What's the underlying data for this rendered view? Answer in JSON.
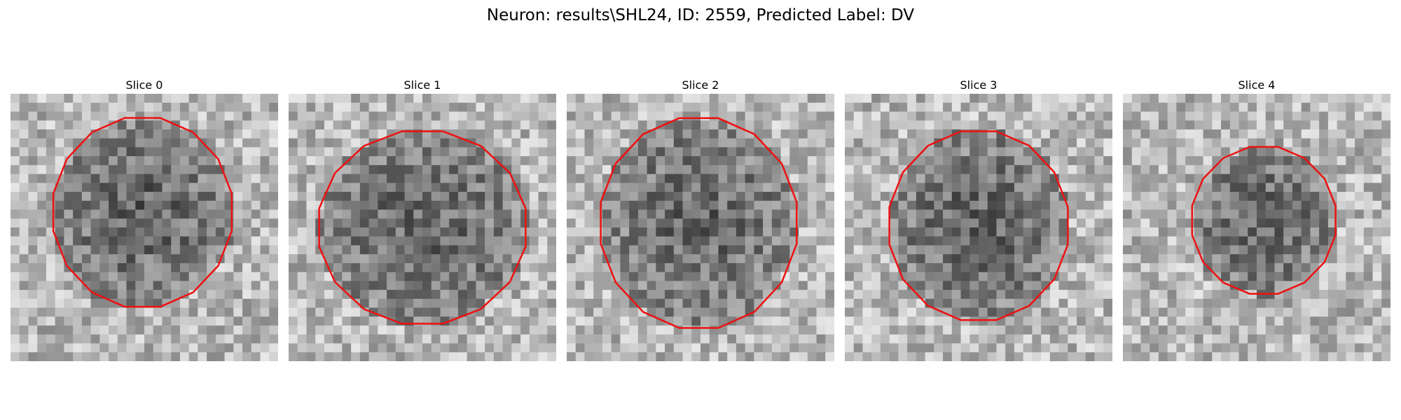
{
  "figure": {
    "title": "Neuron: results\\SHL24, ID: 2559, Predicted Label: DV"
  },
  "panels": [
    {
      "title": "Slice 0"
    },
    {
      "title": "Slice 1"
    },
    {
      "title": "Slice 2"
    },
    {
      "title": "Slice 3"
    },
    {
      "title": "Slice 4"
    }
  ],
  "colors": {
    "contour": "#ee1111",
    "background": "#ffffff"
  }
}
